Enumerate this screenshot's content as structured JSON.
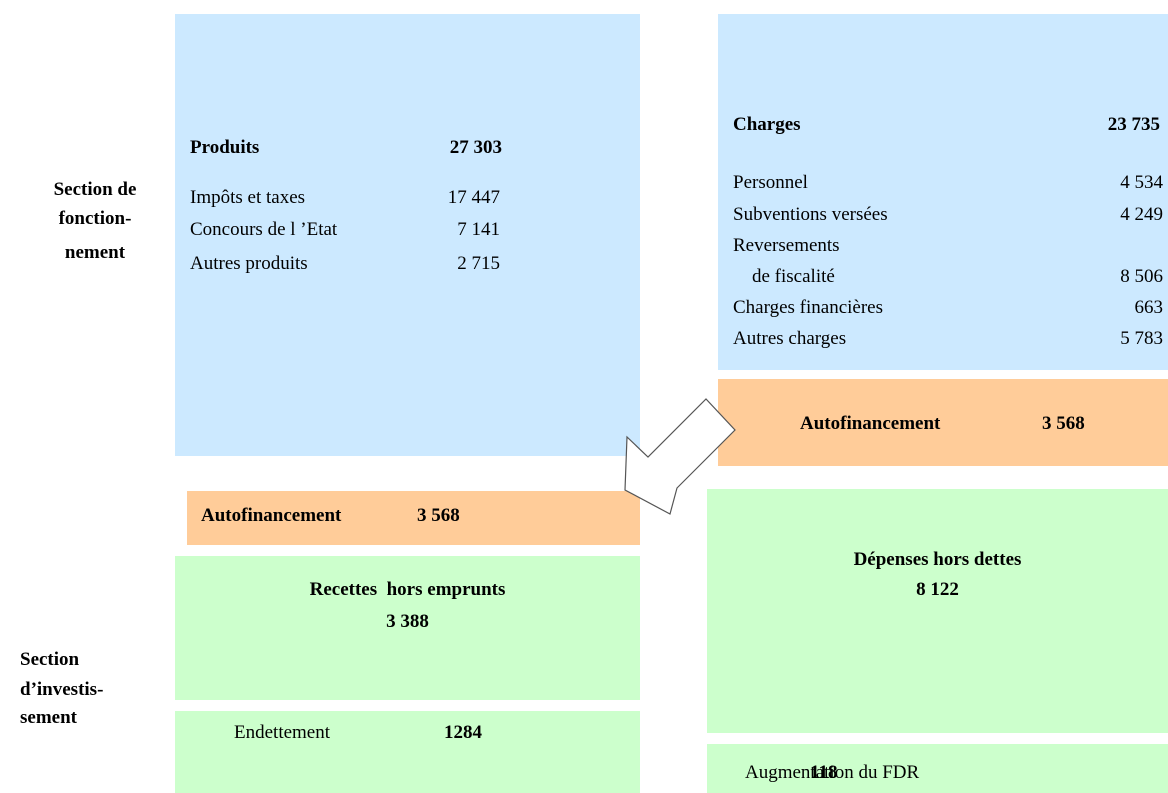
{
  "sections": {
    "fonctionnement": [
      "Section de",
      "fonction-",
      "nement"
    ],
    "investissement": [
      "Section",
      "d’investis-",
      "sement"
    ]
  },
  "produits": {
    "title": "Produits",
    "total": "27 303",
    "items": [
      {
        "label": "Impôts et taxes",
        "value": "17 447"
      },
      {
        "label": "Concours de l ’Etat",
        "value": "7 141"
      },
      {
        "label": "Autres produits",
        "value": "2 715"
      }
    ]
  },
  "charges": {
    "title": "Charges",
    "total": "23 735",
    "items": [
      {
        "label": "Personnel",
        "value": "4 534"
      },
      {
        "label": "Subventions versées",
        "value": "4 249"
      },
      {
        "label": "Reversements",
        "label2": "de fiscalité",
        "value": "8 506"
      },
      {
        "label": "Charges financières",
        "value": "663"
      },
      {
        "label": "Autres charges",
        "value": "5 783"
      }
    ]
  },
  "autofinancement_right": {
    "label": "Autofinancement",
    "value": "3 568"
  },
  "autofinancement_left": {
    "label": "Autofinancement",
    "value": "3 568"
  },
  "recettes": {
    "label": "Recettes  hors emprunts",
    "value": "3 388"
  },
  "endettement": {
    "label": "Endettement",
    "value": "1284"
  },
  "depenses": {
    "label": "Dépenses hors dettes",
    "value": "8 122"
  },
  "fdr": {
    "label": "Augmentation du FDR",
    "value": "118"
  }
}
